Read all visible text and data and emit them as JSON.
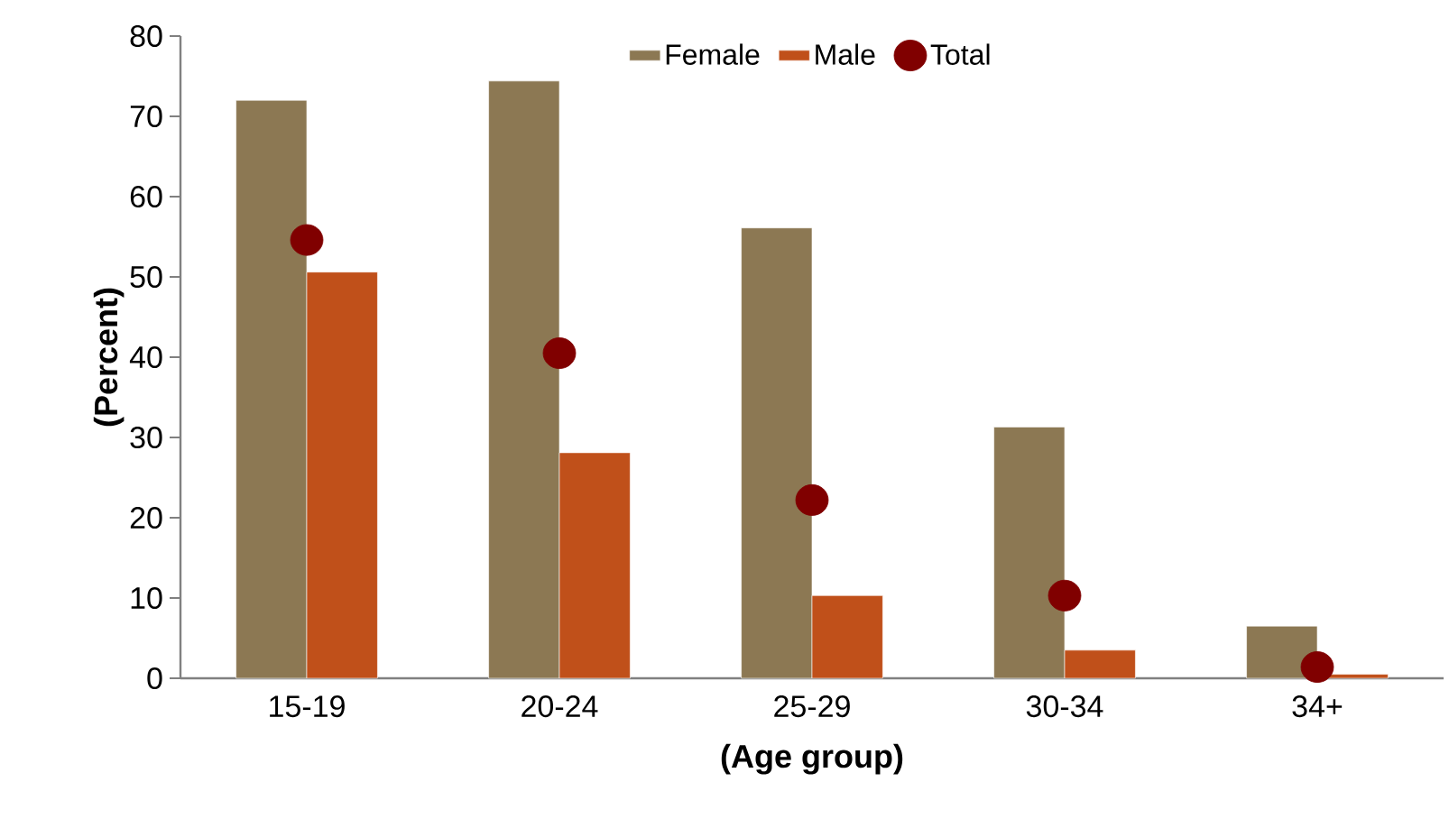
{
  "chart_data": {
    "type": "bar",
    "xlabel": "(Age group)",
    "ylabel": "(Percent)",
    "categories": [
      "15-19",
      "20-24",
      "25-29",
      "30-34",
      "34+"
    ],
    "series": [
      {
        "name": "Female",
        "color": "#8c7853",
        "values": [
          72.0,
          74.4,
          56.1,
          31.3,
          6.5
        ]
      },
      {
        "name": "Male",
        "color": "#c0501a",
        "values": [
          50.6,
          28.1,
          10.3,
          3.5,
          0.5
        ]
      },
      {
        "name": "Total",
        "type": "scatter",
        "color": "#800000",
        "values": [
          54.6,
          40.5,
          22.2,
          10.3,
          1.4
        ]
      }
    ],
    "ylim": [
      0,
      80
    ],
    "yticks": [
      0,
      10,
      20,
      30,
      40,
      50,
      60,
      70,
      80
    ],
    "grid": false,
    "legend": "top",
    "marker": "circle"
  }
}
